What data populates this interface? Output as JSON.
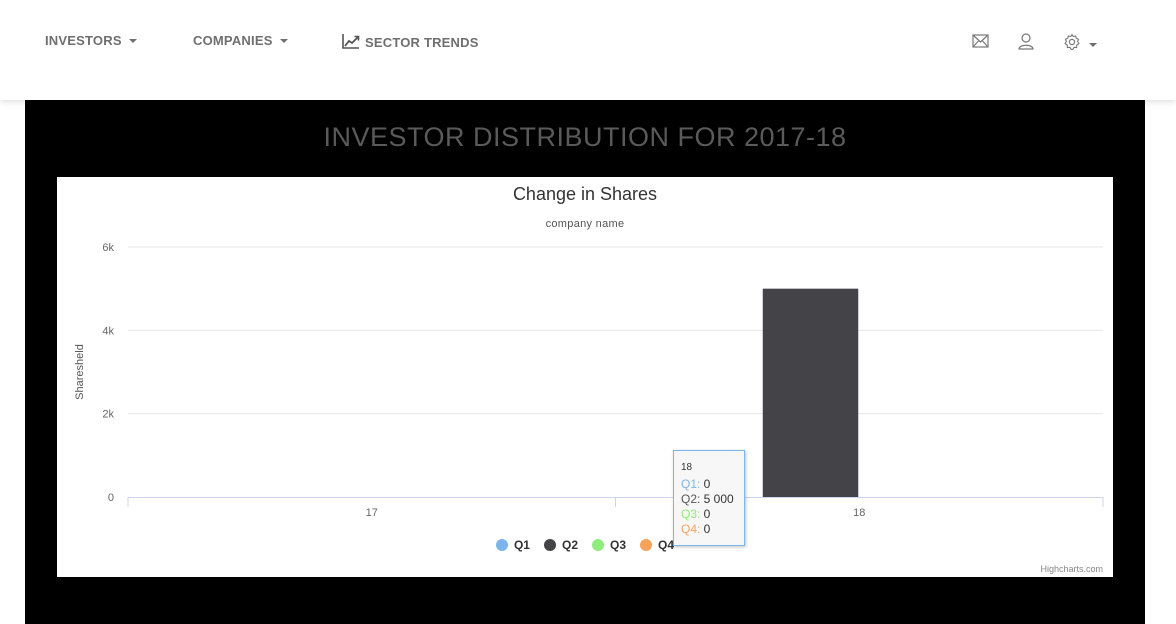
{
  "nav": {
    "investors_label": "INVESTORS",
    "companies_label": "COMPANIES",
    "sector_trends_label": "SECTOR TRENDS"
  },
  "icons": {
    "mail": "mail-icon",
    "user": "user-icon",
    "settings": "gear-icon",
    "trend": "trend-line-icon"
  },
  "panel": {
    "title": "INVESTOR DISTRIBUTION FOR 2017-18"
  },
  "credits": "Highcharts.com",
  "tooltip": {
    "header": "18",
    "rows": [
      {
        "label": "Q1:",
        "value": "0",
        "color": "#7cb5ec"
      },
      {
        "label": "Q2:",
        "value": "5 000",
        "color": "#555555"
      },
      {
        "label": "Q3:",
        "value": "0",
        "color": "#90ed7d"
      },
      {
        "label": "Q4:",
        "value": "0",
        "color": "#f7a35c"
      }
    ]
  },
  "chart_data": {
    "type": "bar",
    "title": "Change in Shares",
    "subtitle": "company name",
    "xlabel": "",
    "ylabel": "Sharesheld",
    "categories": [
      "17",
      "18"
    ],
    "ylim": [
      0,
      6000
    ],
    "yticks": [
      0,
      2000,
      4000,
      6000
    ],
    "ytick_labels": [
      "0",
      "2k",
      "4k",
      "6k"
    ],
    "grid": true,
    "legend_position": "bottom-center",
    "series": [
      {
        "name": "Q1",
        "color": "#7cb5ec",
        "values": [
          0,
          0
        ]
      },
      {
        "name": "Q2",
        "color": "#434348",
        "values": [
          0,
          5000
        ]
      },
      {
        "name": "Q3",
        "color": "#90ed7d",
        "values": [
          0,
          0
        ]
      },
      {
        "name": "Q4",
        "color": "#f7a35c",
        "values": [
          0,
          0
        ]
      }
    ]
  }
}
